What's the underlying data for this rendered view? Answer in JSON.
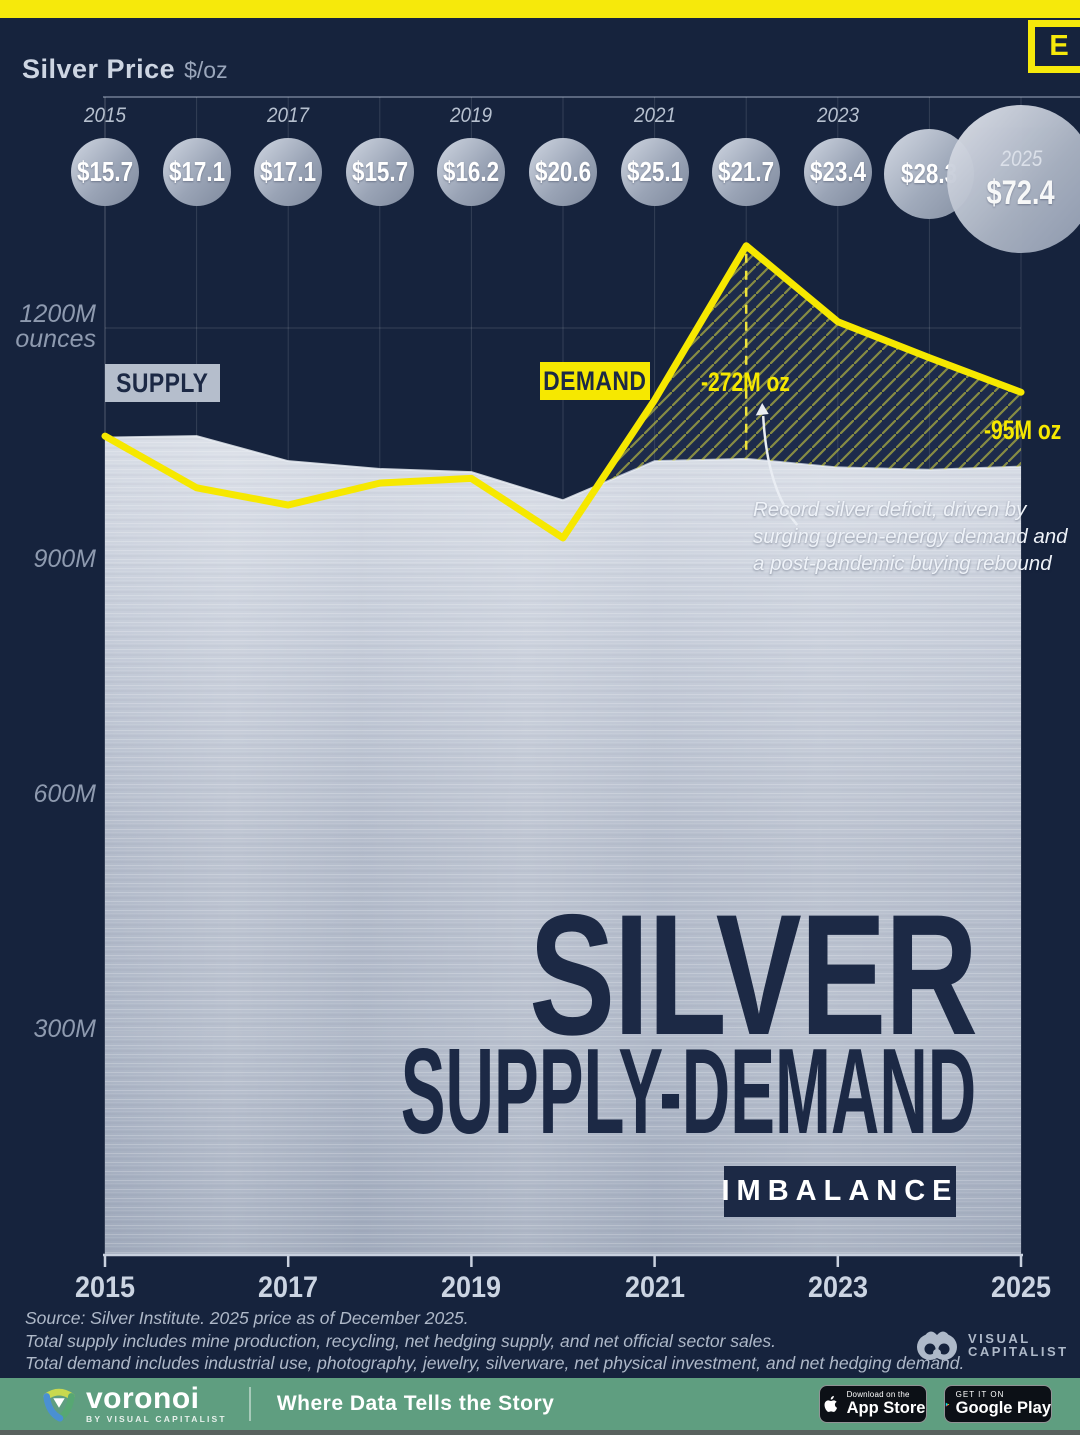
{
  "header": {
    "title": "Silver Price",
    "unit": "$/oz",
    "logo_letter": "E"
  },
  "price_row": {
    "items": [
      {
        "year": "2015",
        "price": "$15.7",
        "show_year": true
      },
      {
        "year": "2016",
        "price": "$17.1",
        "show_year": false
      },
      {
        "year": "2017",
        "price": "$17.1",
        "show_year": true
      },
      {
        "year": "2018",
        "price": "$15.7",
        "show_year": false
      },
      {
        "year": "2019",
        "price": "$16.2",
        "show_year": true
      },
      {
        "year": "2020",
        "price": "$20.6",
        "show_year": false
      },
      {
        "year": "2021",
        "price": "$25.1",
        "show_year": true
      },
      {
        "year": "2022",
        "price": "$21.7",
        "show_year": false
      },
      {
        "year": "2023",
        "price": "$23.4",
        "show_year": true
      },
      {
        "year": "2024",
        "price": "$28.3",
        "show_year": false
      },
      {
        "year": "2025",
        "price": "$72.4",
        "show_year": true,
        "year_inside": true
      }
    ]
  },
  "chart_data": {
    "type": "area",
    "x": [
      2015,
      2016,
      2017,
      2018,
      2019,
      2020,
      2021,
      2022,
      2023,
      2024,
      2025
    ],
    "series": [
      {
        "name": "SUPPLY",
        "values": [
          1060,
          1062,
          1030,
          1020,
          1016,
          980,
          1030,
          1033,
          1022,
          1019,
          1023
        ]
      },
      {
        "name": "DEMAND",
        "values": [
          1062,
          996,
          974,
          1002,
          1008,
          932,
          1108,
          1305,
          1208,
          1162,
          1118
        ]
      }
    ],
    "values_unit": "million ounces",
    "silver_price_usd_per_oz": [
      15.7,
      17.1,
      17.1,
      15.7,
      16.2,
      20.6,
      25.1,
      21.7,
      23.4,
      28.3,
      72.4
    ],
    "yticks": [
      {
        "label": "1200M",
        "sub": "ounces",
        "value": 1200
      },
      {
        "label": "900M",
        "value": 900
      },
      {
        "label": "600M",
        "value": 600
      },
      {
        "label": "300M",
        "value": 300
      }
    ],
    "xtick_years": [
      2015,
      2017,
      2019,
      2021,
      2023,
      2025
    ],
    "ylim": [
      0,
      1340
    ],
    "grid": true,
    "legend_position": "inline-labels",
    "deficit_markers": [
      {
        "year": 2022,
        "label": "-272M oz",
        "dashed": true
      },
      {
        "year": 2025,
        "label": "-95M oz",
        "dashed": false
      }
    ]
  },
  "chart_labels": {
    "supply": "SUPPLY",
    "demand": "DEMAND"
  },
  "annotation": {
    "lines": [
      "Record silver deficit, driven by",
      "surging green-energy demand and",
      "a post-pandemic buying rebound"
    ]
  },
  "title": {
    "line1": "SILVER",
    "line2": "SUPPLY-DEMAND",
    "badge": "IMBALANCE"
  },
  "source": {
    "lines": [
      "Source: Silver Institute. 2025 price as of December 2025.",
      "Total supply includes mine production, recycling, net hedging supply, and net official sector sales.",
      "Total demand includes industrial use, photography, jewelry, silverware, net physical investment, and net hedging demand."
    ]
  },
  "brand": {
    "visual_capitalist_line1": "VISUAL",
    "visual_capitalist_line2": "CAPITALIST"
  },
  "footer": {
    "logo": "voronoi",
    "logo_sub": "BY VISUAL CAPITALIST",
    "tagline": "Where Data Tells the Story",
    "app_store": {
      "small": "Download on the",
      "big": "App Store"
    },
    "google_play": {
      "small": "GET IT ON",
      "big": "Google Play"
    }
  },
  "colors": {
    "background_navy": "#16233d",
    "accent_yellow": "#f6e800",
    "title_navy": "#1c2945",
    "silver_light": "#d6dbe5",
    "silver_dark": "#9fa9bb",
    "footer_green": "#5f9e80"
  }
}
